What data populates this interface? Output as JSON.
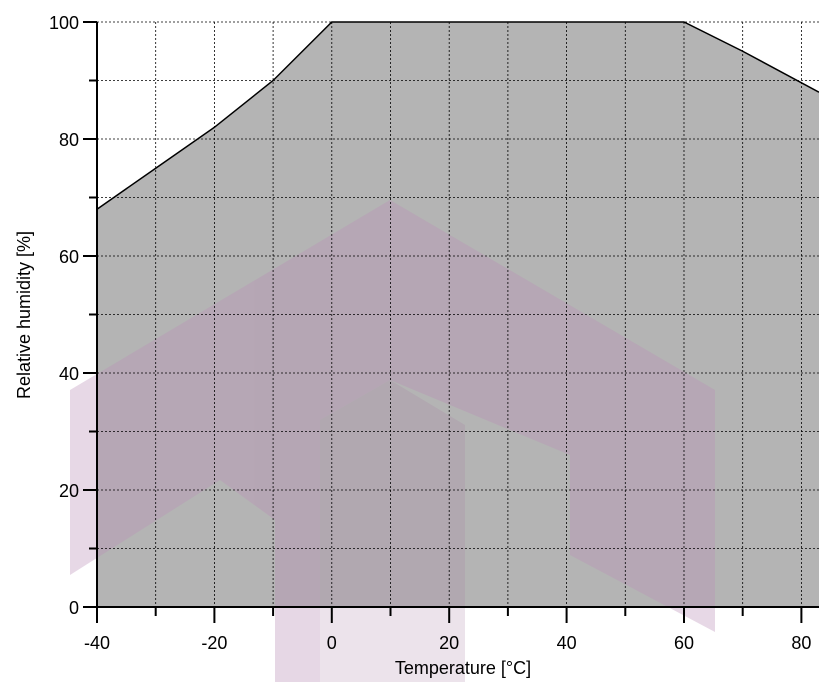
{
  "chart_data": {
    "type": "area",
    "xlabel": "Temperature [°C]",
    "ylabel": "Relative humidity [%]",
    "xlim": [
      -40,
      83
    ],
    "ylim": [
      0,
      100
    ],
    "x_ticks": [
      -40,
      -20,
      0,
      20,
      40,
      60,
      80
    ],
    "y_ticks": [
      0,
      20,
      40,
      60,
      80,
      100
    ],
    "x_minor_step": 10,
    "y_minor_step": 10,
    "grid": true,
    "series": [
      {
        "x": [
          -40,
          -30,
          -20,
          -10,
          0,
          10,
          20,
          30,
          40,
          50,
          60,
          70,
          83
        ],
        "y": [
          68,
          75,
          82,
          90,
          100,
          100,
          100,
          100,
          100,
          100,
          100,
          95,
          88
        ],
        "fill_color": "#b4b4b4",
        "edge_color": "#000000"
      }
    ]
  },
  "colors": {
    "area_fill": "#b4b4b4",
    "watermark": "#c8a8c8"
  }
}
